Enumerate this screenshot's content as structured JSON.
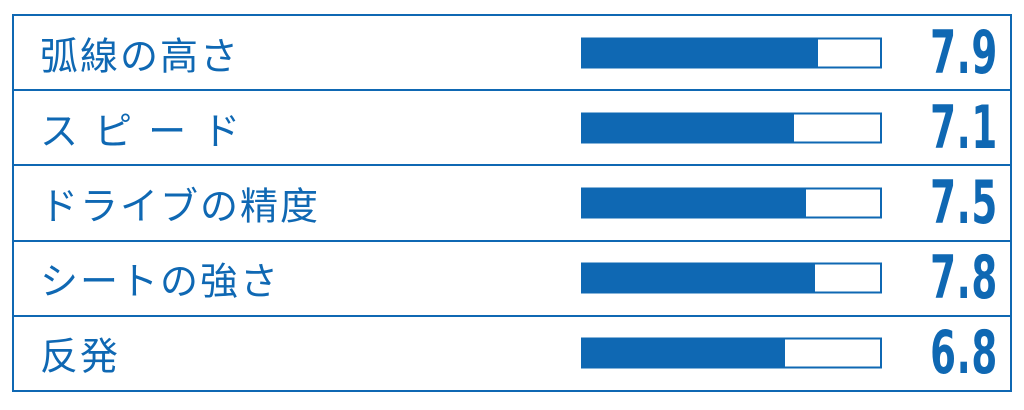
{
  "chart_data": {
    "type": "bar",
    "orientation": "horizontal",
    "title": "",
    "xlabel": "",
    "ylabel": "",
    "categories": [
      "弧線の高さ",
      "ス ピ ー ド",
      "ドライブの精度",
      "シートの強さ",
      "反発"
    ],
    "values": [
      7.9,
      7.1,
      7.5,
      7.8,
      6.8
    ],
    "xlim": [
      0,
      10
    ],
    "grid": false,
    "legend": false,
    "colors": {
      "bar_fill": "#0f68b3",
      "bar_track": "#ffffff",
      "border": "#0f68b3",
      "text": "#0f68b3",
      "background": "#ffffff"
    }
  },
  "rows": [
    {
      "label": "弧線の高さ",
      "value": "7.9",
      "pct": 79
    },
    {
      "label": "ス ピ ー ド",
      "value": "7.1",
      "pct": 71
    },
    {
      "label": "ドライブの精度",
      "value": "7.5",
      "pct": 75
    },
    {
      "label": "シートの強さ",
      "value": "7.8",
      "pct": 78
    },
    {
      "label": "反発",
      "value": "6.8",
      "pct": 68
    }
  ]
}
